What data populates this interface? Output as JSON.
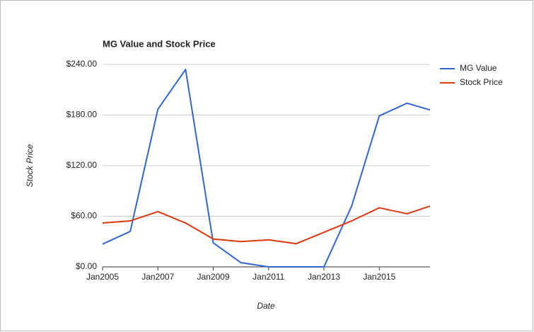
{
  "chart_data": {
    "type": "line",
    "title": "MG Value and Stock Price",
    "x_label": "Date",
    "y_label": "Stock Price",
    "x": [
      "2005-01",
      "2006-01",
      "2007-01",
      "2008-01",
      "2009-01",
      "2010-01",
      "2011-01",
      "2012-01",
      "2013-01",
      "2014-01",
      "2015-01",
      "2016-01",
      "2016-11"
    ],
    "series": [
      {
        "name": "MG Value",
        "color": "#3366cc",
        "values": [
          27,
          42,
          187,
          234,
          28.5,
          5,
          0,
          0,
          0,
          72,
          179,
          194,
          186
        ]
      },
      {
        "name": "Stock Price",
        "color": "#dc3912",
        "values": [
          52,
          54.5,
          65.5,
          52,
          33,
          30,
          32,
          27.5,
          41,
          54.5,
          70,
          63,
          72
        ]
      }
    ],
    "xlim": [
      "2005-01",
      "2016-11"
    ],
    "xticks": [
      {
        "value": "2005-01",
        "label": "Jan2005"
      },
      {
        "value": "2007-01",
        "label": "Jan2007"
      },
      {
        "value": "2009-01",
        "label": "Jan2009"
      },
      {
        "value": "2011-01",
        "label": "Jan2011"
      },
      {
        "value": "2013-01",
        "label": "Jan2013"
      },
      {
        "value": "2015-01",
        "label": "Jan2015"
      }
    ],
    "ylim": [
      0,
      240
    ],
    "yticks": [
      {
        "value": 0,
        "label": "$0.00"
      },
      {
        "value": 60,
        "label": "$60.00"
      },
      {
        "value": 120,
        "label": "$120.00"
      },
      {
        "value": 180,
        "label": "$180.00"
      },
      {
        "value": 240,
        "label": "$240.00"
      }
    ],
    "grid": true,
    "legend": "right"
  }
}
